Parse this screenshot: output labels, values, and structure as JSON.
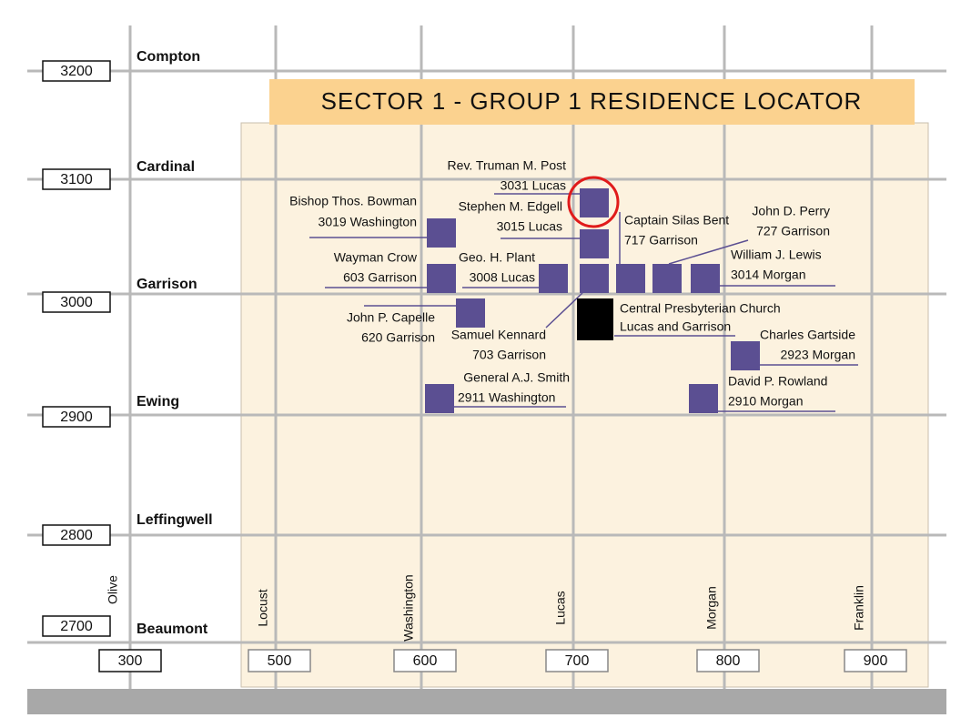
{
  "title": "SECTOR 1 - GROUP 1 RESIDENCE LOCATOR",
  "streets": [
    {
      "name": "Compton",
      "number": "3200"
    },
    {
      "name": "Cardinal",
      "number": "3100"
    },
    {
      "name": "Garrison",
      "number": "3000"
    },
    {
      "name": "Ewing",
      "number": "2900"
    },
    {
      "name": "Leffingwell",
      "number": "2800"
    },
    {
      "name": "Beaumont",
      "number": "2700"
    }
  ],
  "avenues": [
    {
      "name": "Olive",
      "number": "300"
    },
    {
      "name": "Locust",
      "number": "500"
    },
    {
      "name": "Washington",
      "number": "600"
    },
    {
      "name": "Lucas",
      "number": "700"
    },
    {
      "name": "Morgan",
      "number": "800"
    },
    {
      "name": "Franklin",
      "number": "900"
    }
  ],
  "residences": [
    {
      "name": "Rev. Truman M. Post",
      "address": "3031 Lucas"
    },
    {
      "name": "Bishop Thos. Bowman",
      "address": "3019 Washington"
    },
    {
      "name": "Stephen M. Edgell",
      "address": "3015 Lucas"
    },
    {
      "name": "Captain Silas Bent",
      "address": "717 Garrison"
    },
    {
      "name": "John D. Perry",
      "address": "727 Garrison"
    },
    {
      "name": "William J. Lewis",
      "address": "3014 Morgan"
    },
    {
      "name": "Wayman Crow",
      "address": "603 Garrison"
    },
    {
      "name": "Geo. H. Plant",
      "address": "3008 Lucas"
    },
    {
      "name": "John P. Capelle",
      "address": "620 Garrison"
    },
    {
      "name": "Samuel Kennard",
      "address": "703 Garrison"
    },
    {
      "name": "Central Presbyterian Church",
      "address": "Lucas and Garrison"
    },
    {
      "name": "Charles Gartside",
      "address": "2923 Morgan"
    },
    {
      "name": "General A.J. Smith",
      "address": "2911 Washington"
    },
    {
      "name": "David P. Rowland",
      "address": "2910 Morgan"
    }
  ]
}
